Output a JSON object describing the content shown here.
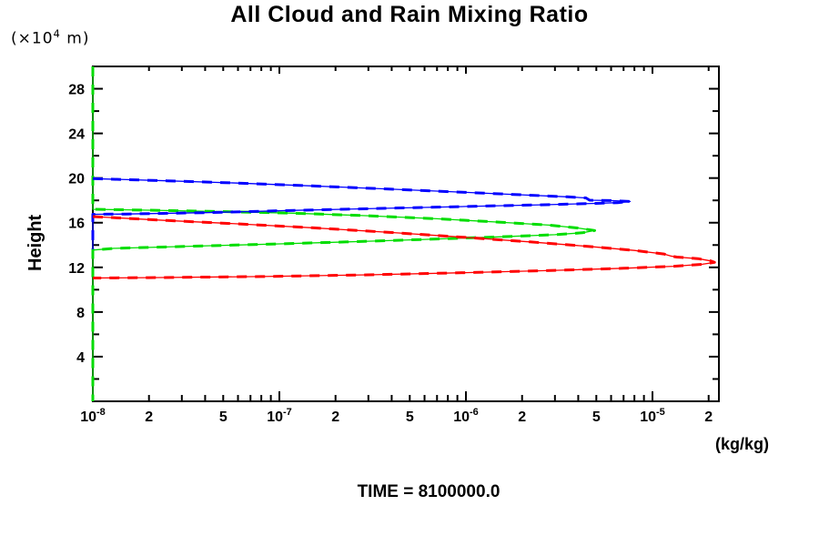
{
  "page": {
    "background": "#ffffff"
  },
  "chart_data": {
    "type": "line",
    "title": "All Cloud and Rain Mixing Ratio",
    "ylabel": "Height",
    "y_axis_unit": {
      "prefix": "(×10",
      "exp": "4",
      "suffix": " m)"
    },
    "x_axis_unit": "(kg/kg)",
    "footer": "TIME = 8100000.0",
    "x_scale": "log",
    "xlim": [
      1e-08,
      2.27e-05
    ],
    "ylim": [
      0,
      30
    ],
    "grid": false,
    "legend": "none",
    "axis_color": "#000000",
    "x_ticks": [
      {
        "v": 1e-08,
        "label": "10",
        "exp": "-8"
      },
      {
        "v": 2e-08,
        "label": "2"
      },
      {
        "v": 5e-08,
        "label": "5"
      },
      {
        "v": 1e-07,
        "label": "10",
        "exp": "-7"
      },
      {
        "v": 2e-07,
        "label": "2"
      },
      {
        "v": 5e-07,
        "label": "5"
      },
      {
        "v": 1e-06,
        "label": "10",
        "exp": "-6"
      },
      {
        "v": 2e-06,
        "label": "2"
      },
      {
        "v": 5e-06,
        "label": "5"
      },
      {
        "v": 1e-05,
        "label": "10",
        "exp": "-5"
      },
      {
        "v": 2e-05,
        "label": "2"
      }
    ],
    "x_ticks_minor": [
      3e-08,
      4e-08,
      6e-08,
      7e-08,
      8e-08,
      9e-08,
      3e-07,
      4e-07,
      6e-07,
      7e-07,
      8e-07,
      9e-07,
      3e-06,
      4e-06,
      6e-06,
      7e-06,
      8e-06,
      9e-06
    ],
    "y_ticks_major": [
      4,
      8,
      12,
      16,
      20,
      24,
      28
    ],
    "y_ticks_minor": [
      2,
      6,
      10,
      14,
      18,
      22,
      26
    ],
    "series": [
      {
        "name": "cloud-green",
        "color": "#00dd00",
        "points": [
          [
            1e-08,
            30
          ],
          [
            1e-08,
            17.2
          ],
          [
            2e-08,
            17.12
          ],
          [
            5e-08,
            17.0
          ],
          [
            1.2e-07,
            16.85
          ],
          [
            3e-07,
            16.62
          ],
          [
            7e-07,
            16.35
          ],
          [
            1.5e-06,
            16.05
          ],
          [
            2.8e-06,
            15.78
          ],
          [
            4e-06,
            15.52
          ],
          [
            4.9e-06,
            15.3
          ],
          [
            4.2e-06,
            15.1
          ],
          [
            3e-06,
            14.93
          ],
          [
            1.5e-06,
            14.73
          ],
          [
            6e-07,
            14.5
          ],
          [
            2.5e-07,
            14.3
          ],
          [
            1e-07,
            14.1
          ],
          [
            3.5e-08,
            13.9
          ],
          [
            1.3e-08,
            13.7
          ],
          [
            1e-08,
            13.55
          ],
          [
            1e-08,
            0
          ]
        ]
      },
      {
        "name": "cloud-blue",
        "color": "#0000ff",
        "points": [
          [
            1e-08,
            19.95
          ],
          [
            2.5e-08,
            19.75
          ],
          [
            6e-08,
            19.55
          ],
          [
            1.5e-07,
            19.3
          ],
          [
            4e-07,
            19.0
          ],
          [
            1e-06,
            18.72
          ],
          [
            2e-06,
            18.5
          ],
          [
            3.5e-06,
            18.32
          ],
          [
            4.4e-06,
            18.22
          ],
          [
            4.6e-06,
            18.02
          ],
          [
            6e-06,
            17.98
          ],
          [
            7.6e-06,
            17.9
          ],
          [
            6.5e-06,
            17.8
          ],
          [
            5e-06,
            17.73
          ],
          [
            2.5e-06,
            17.6
          ],
          [
            1e-06,
            17.45
          ],
          [
            3.5e-07,
            17.28
          ],
          [
            1.2e-07,
            17.1
          ],
          [
            4e-08,
            16.9
          ],
          [
            1.5e-08,
            16.78
          ],
          [
            1e-08,
            16.75
          ],
          [
            1e-08,
            13.65
          ]
        ]
      },
      {
        "name": "rain-red",
        "color": "#ff0000",
        "points": [
          [
            1e-08,
            16.55
          ],
          [
            2.5e-08,
            16.2
          ],
          [
            6e-08,
            15.9
          ],
          [
            1.5e-07,
            15.55
          ],
          [
            4e-07,
            15.12
          ],
          [
            1e-06,
            14.68
          ],
          [
            2.2e-06,
            14.28
          ],
          [
            4.5e-06,
            13.88
          ],
          [
            8e-06,
            13.52
          ],
          [
            1.15e-05,
            13.2
          ],
          [
            1.25e-05,
            13.02
          ],
          [
            1.35e-05,
            12.92
          ],
          [
            1.75e-05,
            12.78
          ],
          [
            2.05e-05,
            12.58
          ],
          [
            2.15e-05,
            12.45
          ],
          [
            1.85e-05,
            12.28
          ],
          [
            1.3e-05,
            12.1
          ],
          [
            7e-06,
            11.92
          ],
          [
            3e-06,
            11.73
          ],
          [
            1e-06,
            11.53
          ],
          [
            3e-07,
            11.33
          ],
          [
            8e-08,
            11.18
          ],
          [
            2e-08,
            11.08
          ],
          [
            1e-08,
            11.05
          ]
        ]
      }
    ]
  }
}
